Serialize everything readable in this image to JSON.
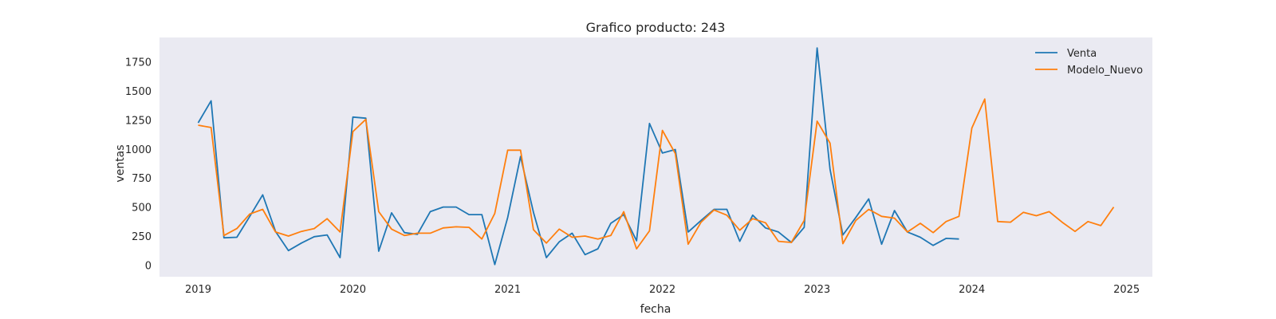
{
  "chart_data": {
    "type": "line",
    "title": "Grafico producto: 243",
    "xlabel": "fecha",
    "ylabel": "ventas",
    "x_ticks": [
      "2019",
      "2020",
      "2021",
      "2022",
      "2023",
      "2024",
      "2025"
    ],
    "y_ticks": [
      "0",
      "250",
      "500",
      "750",
      "1000",
      "1250",
      "1500",
      "1750"
    ],
    "ylim": [
      -100,
      1960
    ],
    "xlim": [
      "2018-10",
      "2025-03"
    ],
    "grid": false,
    "background_color": "#eaeaf2",
    "legend_position": "top-right",
    "series": [
      {
        "name": "Venta",
        "color": "#1f77b4",
        "x": [
          "2019-01",
          "2019-02",
          "2019-03",
          "2019-04",
          "2019-05",
          "2019-06",
          "2019-07",
          "2019-08",
          "2019-09",
          "2019-10",
          "2019-11",
          "2019-12",
          "2020-01",
          "2020-02",
          "2020-03",
          "2020-04",
          "2020-05",
          "2020-06",
          "2020-07",
          "2020-08",
          "2020-09",
          "2020-10",
          "2020-11",
          "2020-12",
          "2021-01",
          "2021-02",
          "2021-03",
          "2021-04",
          "2021-05",
          "2021-06",
          "2021-07",
          "2021-08",
          "2021-09",
          "2021-10",
          "2021-11",
          "2021-12",
          "2022-01",
          "2022-02",
          "2022-03",
          "2022-04",
          "2022-05",
          "2022-06",
          "2022-07",
          "2022-08",
          "2022-09",
          "2022-10",
          "2022-11",
          "2022-12",
          "2023-01",
          "2023-02",
          "2023-03",
          "2023-04",
          "2023-05",
          "2023-06",
          "2023-07",
          "2023-08",
          "2023-09",
          "2023-10",
          "2023-11",
          "2023-12"
        ],
        "values": [
          1225,
          1415,
          235,
          240,
          420,
          605,
          290,
          125,
          190,
          245,
          260,
          65,
          1275,
          1265,
          120,
          450,
          280,
          265,
          460,
          500,
          500,
          435,
          435,
          5,
          410,
          935,
          455,
          65,
          200,
          275,
          90,
          140,
          360,
          435,
          210,
          1220,
          965,
          995,
          285,
          385,
          480,
          480,
          205,
          430,
          320,
          285,
          195,
          325,
          1870,
          825,
          260,
          410,
          570,
          180,
          470,
          285,
          240,
          170,
          230,
          225
        ]
      },
      {
        "name": "Modelo_Nuevo",
        "color": "#ff7f0e",
        "x": [
          "2019-01",
          "2019-02",
          "2019-03",
          "2019-04",
          "2019-05",
          "2019-06",
          "2019-07",
          "2019-08",
          "2019-09",
          "2019-10",
          "2019-11",
          "2019-12",
          "2020-01",
          "2020-02",
          "2020-03",
          "2020-04",
          "2020-05",
          "2020-06",
          "2020-07",
          "2020-08",
          "2020-09",
          "2020-10",
          "2020-11",
          "2020-12",
          "2021-01",
          "2021-02",
          "2021-03",
          "2021-04",
          "2021-05",
          "2021-06",
          "2021-07",
          "2021-08",
          "2021-09",
          "2021-10",
          "2021-11",
          "2021-12",
          "2022-01",
          "2022-02",
          "2022-03",
          "2022-04",
          "2022-05",
          "2022-06",
          "2022-07",
          "2022-08",
          "2022-09",
          "2022-10",
          "2022-11",
          "2022-12",
          "2023-01",
          "2023-02",
          "2023-03",
          "2023-04",
          "2023-05",
          "2023-06",
          "2023-07",
          "2023-08",
          "2023-09",
          "2023-10",
          "2023-11",
          "2023-12",
          "2024-01",
          "2024-02",
          "2024-03",
          "2024-04",
          "2024-05",
          "2024-06",
          "2024-07",
          "2024-08",
          "2024-09",
          "2024-10",
          "2024-11",
          "2024-12"
        ],
        "values": [
          1205,
          1185,
          255,
          315,
          440,
          480,
          285,
          250,
          290,
          315,
          400,
          285,
          1150,
          1255,
          460,
          310,
          255,
          275,
          275,
          320,
          330,
          325,
          225,
          445,
          990,
          990,
          305,
          190,
          310,
          240,
          250,
          225,
          255,
          460,
          140,
          295,
          1160,
          960,
          180,
          370,
          475,
          430,
          300,
          400,
          365,
          205,
          195,
          385,
          1240,
          1050,
          185,
          385,
          480,
          420,
          405,
          285,
          360,
          280,
          375,
          420,
          1180,
          1430,
          375,
          370,
          455,
          425,
          460,
          370,
          290,
          375,
          340,
          500
        ]
      }
    ]
  }
}
